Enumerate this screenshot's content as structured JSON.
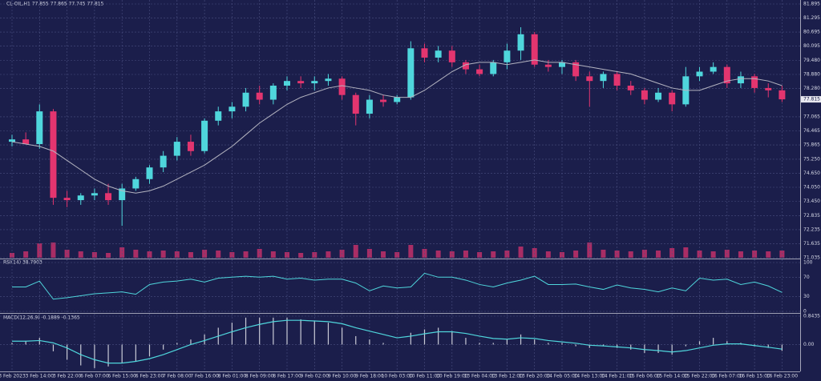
{
  "chart_data": [
    {
      "type": "candlestick",
      "title": "CL-OIL,H1 77.855 77.865 77.745 77.815",
      "categories": [
        "3 Feb 2023",
        null,
        "3 Feb 14:00",
        null,
        "3 Feb 22:00",
        null,
        "6 Feb 07:00",
        null,
        "6 Feb 15:00",
        null,
        "6 Feb 23:00",
        null,
        "7 Feb 08:00",
        null,
        "7 Feb 16:00",
        null,
        "8 Feb 01:00",
        null,
        "8 Feb 09:00",
        null,
        "8 Feb 17:00",
        null,
        "9 Feb 02:00",
        null,
        "9 Feb 10:00",
        null,
        "9 Feb 18:00",
        null,
        "10 Feb 03:00",
        null,
        "10 Feb 11:00",
        null,
        "10 Feb 19:00",
        null,
        "13 Feb 04:00",
        null,
        "13 Feb 12:00",
        null,
        "13 Feb 20:00",
        null,
        "14 Feb 05:00",
        null,
        "14 Feb 13:00",
        null,
        "14 Feb 21:00",
        null,
        "15 Feb 06:00",
        null,
        "15 Feb 14:00",
        null,
        "15 Feb 22:00",
        null,
        "16 Feb 07:00",
        null,
        "16 Feb 15:00",
        null,
        "16 Feb 23:00"
      ],
      "open": [
        76.0,
        76.1,
        75.9,
        77.3,
        73.6,
        73.5,
        73.7,
        73.8,
        73.5,
        74.0,
        74.4,
        74.9,
        75.4,
        76.0,
        75.6,
        76.9,
        77.3,
        77.5,
        78.1,
        77.8,
        78.4,
        78.6,
        78.5,
        78.6,
        78.7,
        78.0,
        77.2,
        77.8,
        77.7,
        77.9,
        80.0,
        79.6,
        79.9,
        79.4,
        79.1,
        78.9,
        79.4,
        79.9,
        80.6,
        79.3,
        79.2,
        79.4,
        78.8,
        78.6,
        78.9,
        78.4,
        78.2,
        77.8,
        78.1,
        77.6,
        78.8,
        79.0,
        79.2,
        78.5,
        78.8,
        78.3,
        78.2
      ],
      "high": [
        76.3,
        76.4,
        77.6,
        77.4,
        73.9,
        73.8,
        74.0,
        74.2,
        74.2,
        74.5,
        75.0,
        75.6,
        76.2,
        76.3,
        77.0,
        77.5,
        77.7,
        78.3,
        78.4,
        78.5,
        78.8,
        78.8,
        78.8,
        78.9,
        78.8,
        78.1,
        78.0,
        78.0,
        78.0,
        80.3,
        80.2,
        80.1,
        80.1,
        79.5,
        79.3,
        79.5,
        80.2,
        80.9,
        80.7,
        79.5,
        79.5,
        79.5,
        79.0,
        79.0,
        79.0,
        78.6,
        78.3,
        78.3,
        78.2,
        79.2,
        79.2,
        79.4,
        79.3,
        79.0,
        78.9,
        78.5,
        78.4
      ],
      "low": [
        75.8,
        75.9,
        75.7,
        73.3,
        73.2,
        73.3,
        73.5,
        73.3,
        72.4,
        73.9,
        74.2,
        74.7,
        75.2,
        75.4,
        75.5,
        76.7,
        77.0,
        77.3,
        77.6,
        77.6,
        78.2,
        78.3,
        78.2,
        78.4,
        77.8,
        76.7,
        77.0,
        77.5,
        77.6,
        77.8,
        79.4,
        79.4,
        79.2,
        78.9,
        78.8,
        78.8,
        79.1,
        79.5,
        79.2,
        79.0,
        78.9,
        78.6,
        77.5,
        78.3,
        78.2,
        78.0,
        77.6,
        77.7,
        77.3,
        77.5,
        78.6,
        78.9,
        78.3,
        78.3,
        78.1,
        77.9,
        77.7
      ],
      "close": [
        76.1,
        75.9,
        77.3,
        73.6,
        73.5,
        73.7,
        73.8,
        73.5,
        74.0,
        74.4,
        74.9,
        75.4,
        76.0,
        75.6,
        76.9,
        77.3,
        77.5,
        78.1,
        77.8,
        78.4,
        78.6,
        78.5,
        78.6,
        78.7,
        78.0,
        77.2,
        77.8,
        77.7,
        77.9,
        80.0,
        79.6,
        79.9,
        79.4,
        79.1,
        78.9,
        79.4,
        79.9,
        80.6,
        79.3,
        79.2,
        79.4,
        78.8,
        78.6,
        78.9,
        78.4,
        78.2,
        77.8,
        78.1,
        77.6,
        78.8,
        79.0,
        79.2,
        78.5,
        78.8,
        78.3,
        78.2,
        77.815
      ],
      "up_color": "#4fd6dc",
      "down_color": "#e3356f",
      "ma": {
        "color": "#b4b4c0",
        "values": [
          76.0,
          75.9,
          75.8,
          75.6,
          75.2,
          74.8,
          74.4,
          74.1,
          73.9,
          73.8,
          73.9,
          74.1,
          74.4,
          74.7,
          75.0,
          75.4,
          75.8,
          76.3,
          76.8,
          77.2,
          77.6,
          77.9,
          78.1,
          78.3,
          78.4,
          78.3,
          78.2,
          78.0,
          77.9,
          77.9,
          78.2,
          78.6,
          79.0,
          79.3,
          79.4,
          79.4,
          79.3,
          79.4,
          79.5,
          79.4,
          79.4,
          79.3,
          79.2,
          79.1,
          79.0,
          78.9,
          78.7,
          78.5,
          78.3,
          78.2,
          78.2,
          78.4,
          78.6,
          78.7,
          78.7,
          78.6,
          78.4
        ]
      },
      "ylim": [
        71.035,
        81.895
      ],
      "yticks": [
        81.895,
        81.295,
        80.695,
        80.095,
        {
          "value": 79.48,
          "label": "79.480"
        },
        {
          "value": 78.88,
          "label": "78.880"
        },
        {
          "value": 78.28,
          "label": "78.280"
        },
        77.065,
        76.465,
        75.865,
        {
          "value": 75.25,
          "label": "75.250"
        },
        {
          "value": 74.65,
          "label": "74.650"
        },
        {
          "value": 74.05,
          "label": "74.050"
        },
        {
          "value": 73.45,
          "label": "73.450"
        },
        72.835,
        72.235,
        71.635,
        71.035
      ],
      "last_price": 77.815,
      "grid": true
    },
    {
      "type": "volume",
      "color": "#c2306a",
      "ylim": [
        0,
        30000
      ],
      "values": [
        3000,
        4000,
        9000,
        9500,
        5000,
        4000,
        3500,
        3000,
        6500,
        5000,
        4000,
        4500,
        4000,
        3500,
        5000,
        4500,
        3500,
        4000,
        5500,
        4000,
        3500,
        3000,
        3500,
        4000,
        5000,
        8000,
        5500,
        4000,
        3500,
        8000,
        5500,
        4500,
        4000,
        4500,
        3500,
        4000,
        4500,
        7000,
        6000,
        4000,
        3500,
        4500,
        9500,
        5000,
        4500,
        4000,
        5000,
        4500,
        6000,
        6500,
        4500,
        4000,
        5000,
        4000,
        4500,
        4000,
        4500
      ]
    },
    {
      "type": "rsi",
      "title": "RSI(14) 38.7903",
      "color": "#4fd6dc",
      "ylim": [
        0,
        100
      ],
      "yticks": [
        100,
        70,
        30,
        0
      ],
      "values": [
        50,
        50,
        62,
        25,
        28,
        32,
        36,
        38,
        40,
        35,
        55,
        60,
        62,
        66,
        60,
        68,
        70,
        72,
        70,
        72,
        66,
        68,
        64,
        66,
        66,
        58,
        42,
        52,
        48,
        50,
        78,
        70,
        70,
        64,
        55,
        50,
        58,
        64,
        72,
        55,
        55,
        56,
        50,
        45,
        54,
        48,
        45,
        40,
        48,
        42,
        68,
        64,
        66,
        55,
        60,
        52,
        38.79
      ]
    },
    {
      "type": "macd",
      "title": "MACD(12,26,9) -0.1889 -0.1365",
      "ylim": [
        -0.75,
        0.8435
      ],
      "yticks": [
        0.8435,
        {
          "value": 0,
          "label": "0.00"
        }
      ],
      "histogram": {
        "color": "#c9cad6",
        "values": [
          0.05,
          0.1,
          0.2,
          -0.2,
          -0.45,
          -0.62,
          -0.7,
          -0.65,
          -0.55,
          -0.5,
          -0.35,
          -0.15,
          0.05,
          0.15,
          0.3,
          0.5,
          0.65,
          0.8,
          0.8,
          0.8,
          0.8,
          0.75,
          0.7,
          0.65,
          0.5,
          0.25,
          0.15,
          0.05,
          0.0,
          0.35,
          0.45,
          0.5,
          0.4,
          0.2,
          0.05,
          0.05,
          0.15,
          0.3,
          0.15,
          0.05,
          0.05,
          -0.05,
          -0.1,
          -0.05,
          -0.1,
          -0.15,
          -0.25,
          -0.25,
          -0.3,
          -0.05,
          0.1,
          0.2,
          0.1,
          0.05,
          -0.05,
          -0.1,
          -0.1889
        ]
      },
      "signal": {
        "color": "#4fd6dc",
        "values": [
          0.1,
          0.1,
          0.12,
          0.05,
          -0.1,
          -0.3,
          -0.45,
          -0.55,
          -0.55,
          -0.5,
          -0.42,
          -0.3,
          -0.15,
          0,
          0.12,
          0.25,
          0.38,
          0.5,
          0.6,
          0.68,
          0.72,
          0.72,
          0.7,
          0.68,
          0.62,
          0.5,
          0.4,
          0.3,
          0.2,
          0.25,
          0.32,
          0.38,
          0.38,
          0.33,
          0.25,
          0.18,
          0.16,
          0.2,
          0.18,
          0.12,
          0.08,
          0.04,
          -0.02,
          -0.04,
          -0.07,
          -0.1,
          -0.15,
          -0.18,
          -0.22,
          -0.18,
          -0.1,
          -0.02,
          0.02,
          0.02,
          -0.03,
          -0.08,
          -0.1365
        ]
      }
    }
  ]
}
